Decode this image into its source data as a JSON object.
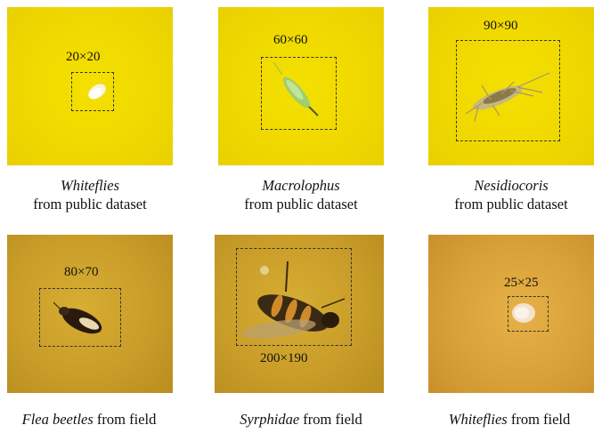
{
  "panels": [
    {
      "size": "20×20",
      "name": "Whiteflies",
      "source": "from  public dataset"
    },
    {
      "size": "60×60",
      "name": "Macrolophus",
      "source": "from  public dataset"
    },
    {
      "size": "90×90",
      "name": "Nesidiocoris",
      "source": "from  public dataset"
    },
    {
      "size": "80×70",
      "name": "Flea beetles",
      "source": "from  field"
    },
    {
      "size": "200×190",
      "name": "Syrphidae",
      "source": "from  field"
    },
    {
      "size": "25×25",
      "name": "Whiteflies",
      "source": "from  field"
    }
  ],
  "colors": {
    "trap_yellow": "#efd800",
    "field_yellow": "#c99d28",
    "box_border": "#333333"
  }
}
